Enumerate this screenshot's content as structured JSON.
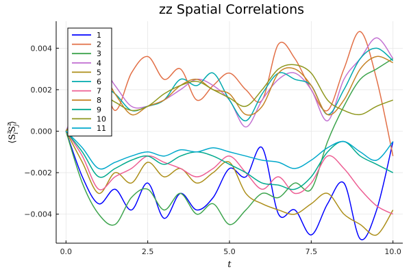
{
  "chart_data": {
    "type": "line",
    "title": "zz Spatial Correlations",
    "xlabel": "t",
    "ylabel": "⟨S_i^z S_j^z⟩",
    "xlim": [
      -0.3,
      10.3
    ],
    "ylim": [
      -0.0054,
      0.0053
    ],
    "xticks": [
      0.0,
      2.5,
      5.0,
      7.5,
      10.0
    ],
    "xtick_labels": [
      "0.0",
      "2.5",
      "5.0",
      "7.5",
      "10.0"
    ],
    "yticks": [
      0.004,
      0.002,
      0.0,
      -0.002,
      -0.004
    ],
    "ytick_labels": [
      "0.004",
      "0.002",
      "0.000",
      "−0.002",
      "−0.004"
    ],
    "grid": true,
    "legend_position": "top-left",
    "x": [
      0,
      0.5,
      1,
      1.5,
      2,
      2.5,
      3,
      3.5,
      4,
      4.5,
      5,
      5.5,
      6,
      6.5,
      7,
      7.5,
      8,
      8.5,
      9,
      9.5,
      10
    ],
    "series": [
      {
        "name": "1",
        "color": "#0000ff",
        "values": [
          0,
          -0.0022,
          -0.0035,
          -0.0028,
          -0.0038,
          -0.0025,
          -0.0042,
          -0.003,
          -0.0038,
          -0.0032,
          -0.0018,
          -0.0022,
          -0.0008,
          -0.004,
          -0.0038,
          -0.005,
          -0.0035,
          -0.0025,
          -0.0052,
          -0.0038,
          -0.0005
        ]
      },
      {
        "name": "2",
        "color": "#e26f46",
        "values": [
          0,
          0.0015,
          0.003,
          0.001,
          0.0028,
          0.0036,
          0.0025,
          0.003,
          0.0015,
          0.0022,
          0.0028,
          0.002,
          0.0015,
          0.0042,
          0.0035,
          0.002,
          0.001,
          0.003,
          0.0048,
          0.0025,
          -0.0012
        ]
      },
      {
        "name": "3",
        "color": "#3da44d",
        "values": [
          0,
          -0.0025,
          -0.004,
          -0.0045,
          -0.0032,
          -0.0028,
          -0.0038,
          -0.003,
          -0.004,
          -0.0035,
          -0.0045,
          -0.0038,
          -0.003,
          -0.0032,
          -0.0025,
          -0.0028,
          -0.0005,
          0.0012,
          0.0025,
          0.003,
          0.0035
        ]
      },
      {
        "name": "4",
        "color": "#c271d2",
        "values": [
          0,
          0.0018,
          0.0032,
          0.0022,
          0.0012,
          0.0012,
          0.0015,
          0.002,
          0.0025,
          0.0022,
          0.0015,
          0.0002,
          0.0015,
          0.0025,
          0.0028,
          0.002,
          0.0005,
          0.0025,
          0.0035,
          0.0045,
          0.0035
        ]
      },
      {
        "name": "5",
        "color": "#ac8e18",
        "values": [
          0,
          -0.0015,
          -0.003,
          -0.002,
          -0.0025,
          -0.0015,
          -0.0022,
          -0.0018,
          -0.0025,
          -0.002,
          -0.0015,
          -0.003,
          -0.0035,
          -0.0038,
          -0.004,
          -0.0035,
          -0.003,
          -0.004,
          -0.0045,
          -0.005,
          -0.0038
        ]
      },
      {
        "name": "6",
        "color": "#00a9ad",
        "values": [
          0,
          0.0012,
          0.0022,
          0.0018,
          0.001,
          0.0012,
          0.0015,
          0.0025,
          0.0022,
          0.0028,
          0.0015,
          0.0005,
          0.0018,
          0.0028,
          0.0025,
          0.0022,
          0.0008,
          0.002,
          0.0035,
          0.004,
          0.0034
        ]
      },
      {
        "name": "7",
        "color": "#ed5e93",
        "values": [
          0,
          -0.0012,
          -0.0028,
          -0.0022,
          -0.0018,
          -0.0012,
          -0.0015,
          -0.0018,
          -0.0022,
          -0.0018,
          -0.0012,
          -0.002,
          -0.0028,
          -0.0022,
          -0.003,
          -0.0025,
          -0.0012,
          -0.0018,
          -0.0028,
          -0.0036,
          -0.004
        ]
      },
      {
        "name": "8",
        "color": "#c68225",
        "values": [
          0,
          0.0012,
          0.003,
          0.0018,
          0.0008,
          0.0012,
          0.0015,
          0.0022,
          0.0025,
          0.002,
          0.0018,
          0.0008,
          0.0012,
          0.0028,
          0.003,
          0.0022,
          0.0008,
          0.0015,
          0.003,
          0.0036,
          0.0033
        ]
      },
      {
        "name": "9",
        "color": "#00a98d",
        "values": [
          0,
          -0.001,
          -0.0022,
          -0.0018,
          -0.0014,
          -0.0012,
          -0.0016,
          -0.0012,
          -0.001,
          -0.0012,
          -0.0016,
          -0.002,
          -0.0025,
          -0.0026,
          -0.0028,
          -0.0022,
          -0.001,
          -0.0005,
          -0.0012,
          -0.0016,
          -0.002
        ]
      },
      {
        "name": "10",
        "color": "#8e971d",
        "values": [
          0,
          0.0008,
          0.0018,
          0.0014,
          0.001,
          0.0012,
          0.0018,
          0.0022,
          0.0024,
          0.002,
          0.0016,
          0.0012,
          0.002,
          0.003,
          0.0032,
          0.0028,
          0.0015,
          0.001,
          0.0008,
          0.0012,
          0.0015
        ]
      },
      {
        "name": "11",
        "color": "#00a8cb",
        "values": [
          0,
          -0.0008,
          -0.0018,
          -0.0015,
          -0.0012,
          -0.001,
          -0.0012,
          -0.0009,
          -0.001,
          -0.0008,
          -0.001,
          -0.0012,
          -0.0014,
          -0.0015,
          -0.0018,
          -0.0014,
          -0.0008,
          -0.0005,
          -0.001,
          -0.0014,
          -0.0005
        ]
      }
    ]
  }
}
